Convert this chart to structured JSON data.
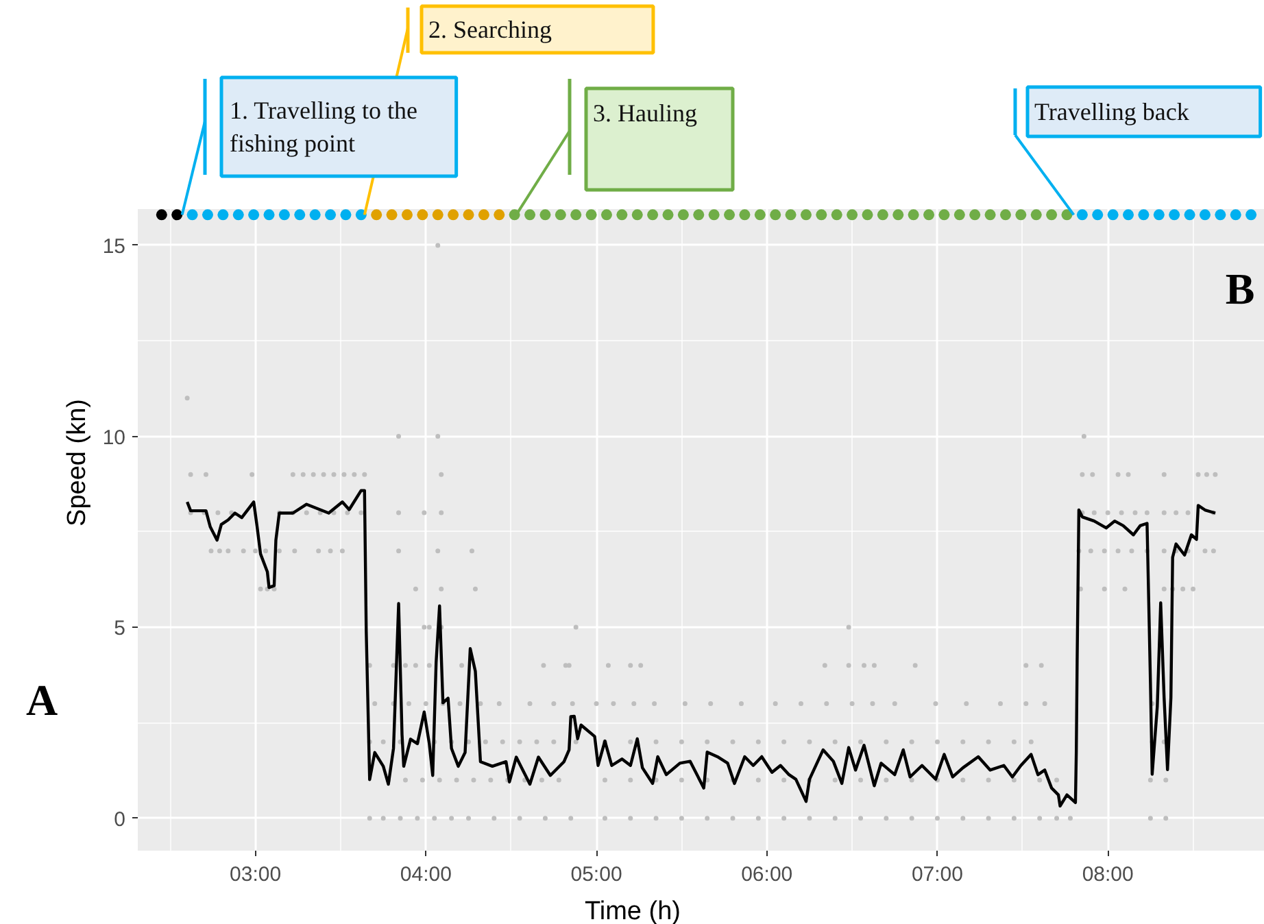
{
  "chart_data": {
    "type": "line",
    "xlabel": "Time (h)",
    "ylabel": "Speed (kn)",
    "xlim": [
      2.31,
      8.92
    ],
    "ylim": [
      -0.85,
      15.95
    ],
    "xticks": [
      {
        "value": 3,
        "label": "03:00"
      },
      {
        "value": 4,
        "label": "04:00"
      },
      {
        "value": 5,
        "label": "05:00"
      },
      {
        "value": 6,
        "label": "06:00"
      },
      {
        "value": 7,
        "label": "07:00"
      },
      {
        "value": 8,
        "label": "08:00"
      }
    ],
    "yticks": [
      0,
      5,
      10,
      15
    ],
    "grid": true,
    "line_style": "solid",
    "series": [
      {
        "type": "scatter",
        "marker": "circle",
        "color": "#bebebe",
        "x": [
          4.07,
          2.6,
          3.84,
          4.07,
          7.86,
          2.62,
          2.71,
          2.98,
          3.22,
          3.28,
          3.34,
          3.4,
          3.46,
          3.52,
          3.58,
          3.64,
          4.09,
          7.85,
          7.91,
          8.06,
          8.12,
          8.33,
          8.53,
          8.58,
          8.63,
          2.62,
          2.7,
          2.78,
          2.86,
          3.14,
          3.22,
          3.3,
          3.38,
          3.46,
          3.54,
          3.62,
          3.84,
          3.99,
          4.09,
          7.85,
          7.92,
          8.0,
          8.08,
          8.16,
          8.23,
          8.33,
          8.4,
          8.47,
          8.62,
          2.74,
          2.79,
          2.84,
          2.93,
          3.0,
          3.06,
          3.14,
          3.23,
          3.37,
          3.44,
          3.51,
          3.84,
          4.07,
          4.27,
          7.83,
          7.9,
          7.98,
          8.06,
          8.14,
          8.23,
          8.33,
          8.4,
          8.47,
          8.57,
          8.62,
          3.03,
          3.07,
          3.11,
          3.94,
          4.09,
          4.29,
          7.84,
          7.98,
          8.1,
          8.33,
          8.38,
          8.44,
          8.5,
          3.99,
          4.02,
          4.09,
          4.88,
          6.48,
          3.67,
          3.81,
          3.88,
          3.94,
          4.02,
          4.21,
          4.69,
          4.82,
          4.84,
          5.07,
          5.2,
          5.26,
          6.34,
          6.48,
          6.57,
          6.63,
          6.87,
          7.52,
          7.61,
          3.7,
          3.81,
          3.9,
          4.0,
          4.1,
          4.2,
          4.32,
          4.43,
          4.61,
          4.75,
          4.86,
          5.0,
          5.1,
          5.22,
          5.34,
          5.52,
          5.67,
          5.85,
          6.05,
          6.2,
          6.35,
          6.5,
          6.62,
          6.75,
          6.99,
          7.17,
          7.37,
          7.52,
          7.63,
          8.26,
          3.67,
          3.75,
          3.85,
          3.95,
          4.05,
          4.15,
          4.25,
          4.35,
          4.45,
          4.55,
          4.65,
          4.75,
          4.88,
          5.05,
          5.2,
          5.35,
          5.5,
          5.65,
          5.8,
          5.95,
          6.1,
          6.25,
          6.4,
          6.55,
          6.7,
          6.85,
          7.0,
          7.15,
          7.3,
          7.45,
          7.55,
          8.26,
          8.33,
          3.78,
          3.88,
          3.98,
          4.08,
          4.18,
          4.28,
          4.38,
          4.48,
          4.58,
          4.68,
          4.78,
          5.05,
          5.2,
          5.35,
          5.5,
          5.65,
          5.8,
          5.95,
          6.1,
          6.25,
          6.4,
          6.55,
          6.7,
          6.85,
          7.0,
          7.15,
          7.3,
          7.45,
          7.6,
          7.7,
          8.25,
          8.34,
          3.67,
          3.75,
          3.85,
          3.95,
          4.05,
          4.15,
          4.25,
          4.4,
          4.55,
          4.7,
          4.85,
          5.05,
          5.2,
          5.35,
          5.5,
          5.65,
          5.8,
          5.95,
          6.1,
          6.25,
          6.4,
          6.55,
          6.7,
          6.85,
          7.0,
          7.15,
          7.3,
          7.45,
          7.6,
          7.7,
          7.78,
          8.25,
          8.34
        ],
        "values": [
          15,
          11,
          10,
          10,
          10,
          9,
          9,
          9,
          9,
          9,
          9,
          9,
          9,
          9,
          9,
          9,
          9,
          9,
          9,
          9,
          9,
          9,
          9,
          9,
          9,
          8,
          8,
          8,
          8,
          8,
          8,
          8,
          8,
          8,
          8,
          8,
          8,
          8,
          8,
          8,
          8,
          8,
          8,
          8,
          8,
          8,
          8,
          8,
          8,
          7,
          7,
          7,
          7,
          7,
          7,
          7,
          7,
          7,
          7,
          7,
          7,
          7,
          7,
          7,
          7,
          7,
          7,
          7,
          7,
          7,
          7,
          7,
          7,
          7,
          6,
          6,
          6,
          6,
          6,
          6,
          6,
          6,
          6,
          6,
          6,
          6,
          6,
          5,
          5,
          5,
          5,
          5,
          4,
          4,
          4,
          4,
          4,
          4,
          4,
          4,
          4,
          4,
          4,
          4,
          4,
          4,
          4,
          4,
          4,
          4,
          4,
          3,
          3,
          3,
          3,
          3,
          3,
          3,
          3,
          3,
          3,
          3,
          3,
          3,
          3,
          3,
          3,
          3,
          3,
          3,
          3,
          3,
          3,
          3,
          3,
          3,
          3,
          3,
          3,
          3,
          3,
          2,
          2,
          2,
          2,
          2,
          2,
          2,
          2,
          2,
          2,
          2,
          2,
          2,
          2,
          2,
          2,
          2,
          2,
          2,
          2,
          2,
          2,
          2,
          2,
          2,
          2,
          2,
          2,
          2,
          2,
          2,
          2,
          2,
          1,
          1,
          1,
          1,
          1,
          1,
          1,
          1,
          1,
          1,
          1,
          1,
          1,
          1,
          1,
          1,
          1,
          1,
          1,
          1,
          1,
          1,
          1,
          1,
          1,
          1,
          1,
          1,
          1,
          1,
          1,
          1,
          0,
          0,
          0,
          0,
          0,
          0,
          0,
          0,
          0,
          0,
          0,
          0,
          0,
          0,
          0,
          0,
          0,
          0,
          0,
          0,
          0,
          0,
          0,
          0,
          0,
          0,
          0,
          0,
          0,
          0,
          0,
          0,
          0
        ]
      },
      {
        "color": "#000000",
        "marker": "none",
        "x": [
          2.6,
          2.62,
          2.71,
          2.735,
          2.775,
          2.8,
          2.84,
          2.88,
          2.92,
          2.99,
          3.01,
          3.03,
          3.07,
          3.08,
          3.11,
          3.12,
          3.14,
          3.22,
          3.3,
          3.43,
          3.51,
          3.55,
          3.62,
          3.64,
          3.65,
          3.67,
          3.7,
          3.75,
          3.78,
          3.81,
          3.84,
          3.86,
          3.87,
          3.91,
          3.95,
          3.99,
          4.02,
          4.04,
          4.06,
          4.08,
          4.1,
          4.13,
          4.15,
          4.19,
          4.23,
          4.26,
          4.29,
          4.32,
          4.39,
          4.47,
          4.49,
          4.53,
          4.61,
          4.66,
          4.73,
          4.81,
          4.84,
          4.85,
          4.87,
          4.89,
          4.91,
          4.99,
          5.01,
          5.05,
          5.09,
          5.15,
          5.2,
          5.24,
          5.27,
          5.33,
          5.36,
          5.41,
          5.49,
          5.55,
          5.63,
          5.65,
          5.71,
          5.77,
          5.81,
          5.87,
          5.92,
          5.97,
          6.03,
          6.08,
          6.13,
          6.17,
          6.23,
          6.25,
          6.33,
          6.39,
          6.44,
          6.48,
          6.52,
          6.57,
          6.63,
          6.67,
          6.75,
          6.8,
          6.84,
          6.91,
          6.99,
          7.04,
          7.09,
          7.15,
          7.24,
          7.31,
          7.39,
          7.44,
          7.49,
          7.55,
          7.59,
          7.63,
          7.67,
          7.71,
          7.72,
          7.76,
          7.81,
          7.815,
          7.82,
          7.83,
          7.85,
          7.92,
          7.99,
          8.04,
          8.09,
          8.15,
          8.19,
          8.23,
          8.24,
          8.25,
          8.26,
          8.29,
          8.31,
          8.33,
          8.35,
          8.37,
          8.38,
          8.4,
          8.45,
          8.49,
          8.52,
          8.53,
          8.57,
          8.63
        ],
        "values": [
          8.28,
          8.05,
          8.05,
          7.63,
          7.28,
          7.69,
          7.81,
          7.99,
          7.87,
          8.28,
          7.63,
          6.92,
          6.45,
          6.04,
          6.09,
          7.28,
          7.99,
          7.99,
          8.22,
          7.99,
          8.28,
          8.08,
          8.58,
          8.58,
          4.91,
          1.01,
          1.72,
          1.36,
          0.89,
          1.83,
          5.62,
          2.19,
          1.36,
          2.07,
          1.95,
          2.78,
          1.95,
          1.12,
          4.08,
          5.56,
          3.02,
          3.14,
          1.83,
          1.36,
          1.72,
          4.44,
          3.85,
          1.48,
          1.36,
          1.48,
          0.95,
          1.6,
          0.89,
          1.6,
          1.12,
          1.48,
          1.79,
          2.66,
          2.67,
          2.08,
          2.44,
          2.14,
          1.38,
          2.02,
          1.38,
          1.55,
          1.38,
          2.08,
          1.32,
          0.91,
          1.61,
          1.14,
          1.44,
          1.49,
          0.79,
          1.73,
          1.61,
          1.44,
          0.91,
          1.61,
          1.38,
          1.61,
          1.2,
          1.38,
          1.14,
          1.02,
          0.44,
          1.02,
          1.79,
          1.49,
          0.91,
          1.85,
          1.26,
          1.91,
          0.85,
          1.44,
          1.14,
          1.79,
          1.08,
          1.38,
          1.02,
          1.67,
          1.08,
          1.32,
          1.61,
          1.26,
          1.38,
          1.08,
          1.38,
          1.67,
          1.14,
          1.26,
          0.79,
          0.61,
          0.32,
          0.61,
          0.41,
          1.73,
          4.11,
          8.07,
          7.89,
          7.78,
          7.6,
          7.78,
          7.66,
          7.42,
          7.66,
          7.72,
          5.64,
          3.51,
          1.15,
          2.92,
          5.64,
          3.16,
          1.27,
          3.16,
          6.83,
          7.18,
          6.89,
          7.42,
          7.3,
          8.19,
          8.07,
          7.99
        ]
      },
      {
        "type": "scatter",
        "marker": "circle",
        "color": "#000000",
        "x": [
          2.45,
          2.54
        ],
        "values": [
          15.8,
          15.8
        ]
      },
      {
        "type": "scatter",
        "marker": "circle",
        "color": "#00b0f0",
        "x": [
          2.63,
          2.72,
          2.81,
          2.9,
          2.99,
          3.08,
          3.17,
          3.26,
          3.35,
          3.44,
          3.53,
          3.62
        ],
        "values": [
          15.8,
          15.8,
          15.8,
          15.8,
          15.8,
          15.8,
          15.8,
          15.8,
          15.8,
          15.8,
          15.8,
          15.8
        ]
      },
      {
        "type": "scatter",
        "marker": "circle",
        "color": "#e0a100",
        "x": [
          3.71,
          3.8,
          3.89,
          3.98,
          4.07,
          4.16,
          4.25,
          4.34,
          4.43
        ],
        "values": [
          15.8,
          15.8,
          15.8,
          15.8,
          15.8,
          15.8,
          15.8,
          15.8,
          15.8
        ]
      },
      {
        "type": "scatter",
        "marker": "circle",
        "color": "#70ad47",
        "x": [
          4.52,
          4.61,
          4.7,
          4.79,
          4.88,
          4.97,
          5.06,
          5.15,
          5.24,
          5.33,
          5.42,
          5.51,
          5.6,
          5.69,
          5.78,
          5.87,
          5.96,
          6.05,
          6.14,
          6.23,
          6.32,
          6.41,
          6.5,
          6.59,
          6.68,
          6.77,
          6.86,
          6.95,
          7.04,
          7.13,
          7.22,
          7.31,
          7.4,
          7.49,
          7.58,
          7.67,
          7.76
        ],
        "values": [
          15.8,
          15.8,
          15.8,
          15.8,
          15.8,
          15.8,
          15.8,
          15.8,
          15.8,
          15.8,
          15.8,
          15.8,
          15.8,
          15.8,
          15.8,
          15.8,
          15.8,
          15.8,
          15.8,
          15.8,
          15.8,
          15.8,
          15.8,
          15.8,
          15.8,
          15.8,
          15.8,
          15.8,
          15.8,
          15.8,
          15.8,
          15.8,
          15.8,
          15.8,
          15.8,
          15.8,
          15.8
        ]
      },
      {
        "type": "scatter",
        "marker": "circle",
        "color": "#00b0f0",
        "x": [
          7.85,
          7.94,
          8.03,
          8.12,
          8.21,
          8.3,
          8.39,
          8.48,
          8.57,
          8.66,
          8.75,
          8.84
        ],
        "values": [
          15.8,
          15.8,
          15.8,
          15.8,
          15.8,
          15.8,
          15.8,
          15.8,
          15.8,
          15.8,
          15.8,
          15.8
        ]
      }
    ],
    "annotations": [
      {
        "text": "1. Travelling to the fishing point",
        "x": 2.57,
        "y": 15.8
      },
      {
        "text": "2. Searching",
        "x": 3.64,
        "y": 15.8
      },
      {
        "text": "3. Hauling",
        "x": 4.53,
        "y": 15.8
      },
      {
        "text": "Travelling back",
        "x": 7.8,
        "y": 15.8
      },
      "A",
      "B"
    ]
  }
}
